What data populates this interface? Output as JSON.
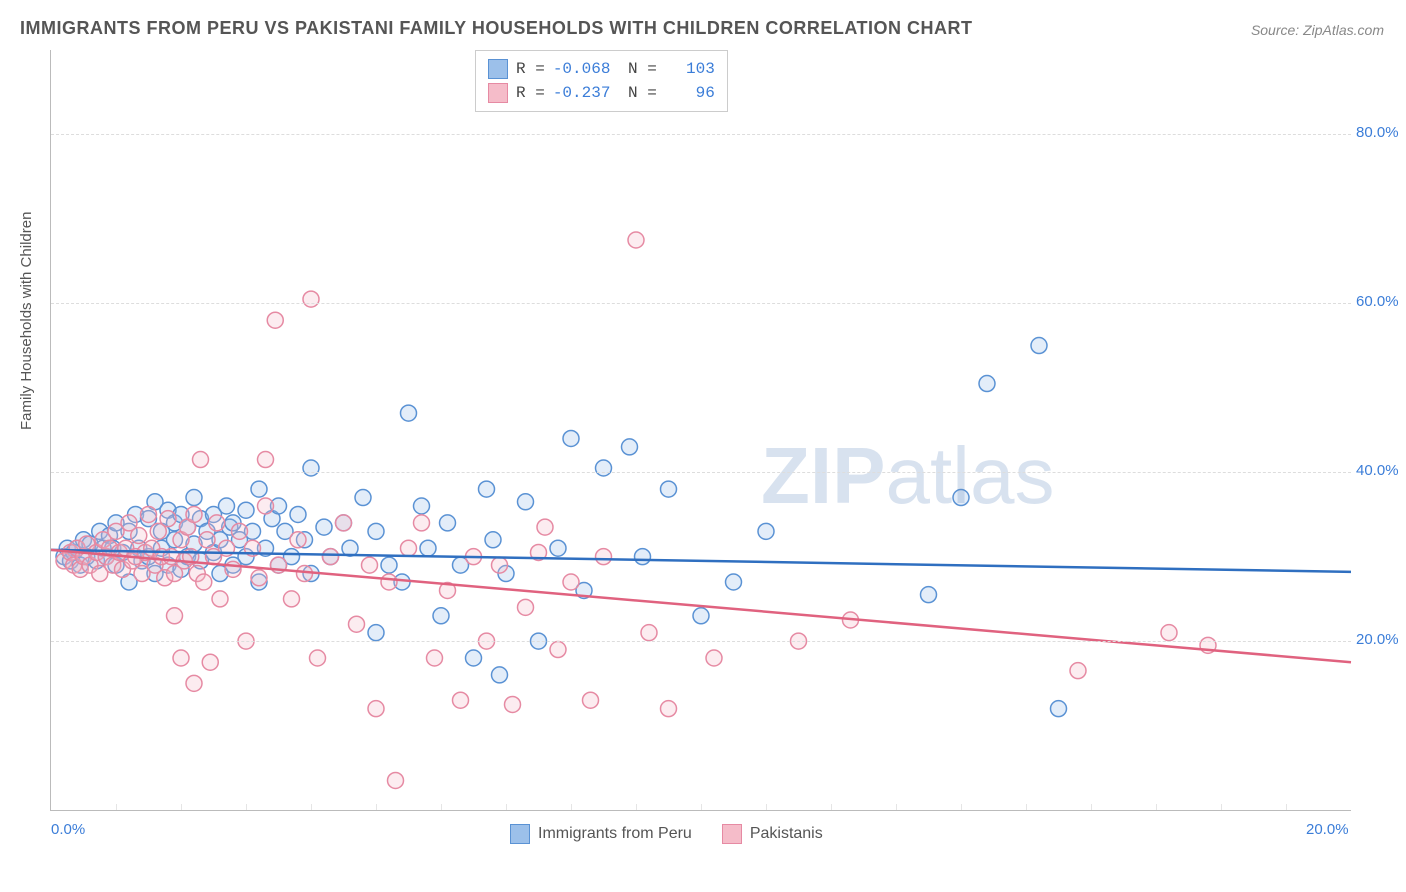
{
  "title": "IMMIGRANTS FROM PERU VS PAKISTANI FAMILY HOUSEHOLDS WITH CHILDREN CORRELATION CHART",
  "source": "Source: ZipAtlas.com",
  "watermark": {
    "bold": "ZIP",
    "rest": "atlas"
  },
  "chart": {
    "type": "scatter",
    "xlim": [
      0,
      20
    ],
    "ylim": [
      0,
      90
    ],
    "xlabel": "",
    "ylabel": "Family Households with Children",
    "xticks": [
      0,
      20
    ],
    "xtick_labels": [
      "0.0%",
      "20.0%"
    ],
    "xtick_color": "#3b7dd8",
    "yticks": [
      20,
      40,
      60,
      80
    ],
    "ytick_labels": [
      "20.0%",
      "40.0%",
      "60.0%",
      "80.0%"
    ],
    "ytick_color": "#3b7dd8",
    "grid_color": "#dddddd",
    "background": "#ffffff",
    "marker_radius": 8,
    "marker_stroke_width": 1.5,
    "marker_fill_opacity": 0.28,
    "line_width": 2.5,
    "series": [
      {
        "name": "Immigrants from Peru",
        "color_fill": "#9cc0ea",
        "color_stroke": "#5a92d4",
        "line_color": "#2f6fc0",
        "R": "-0.068",
        "N": "103",
        "trend": {
          "x1": 0,
          "y1": 30.8,
          "x2": 20,
          "y2": 28.2
        },
        "points": [
          [
            0.2,
            30
          ],
          [
            0.25,
            31
          ],
          [
            0.3,
            29.5
          ],
          [
            0.35,
            30.5
          ],
          [
            0.4,
            31
          ],
          [
            0.45,
            29
          ],
          [
            0.5,
            32
          ],
          [
            0.55,
            30
          ],
          [
            0.6,
            31.5
          ],
          [
            0.7,
            29.5
          ],
          [
            0.75,
            33
          ],
          [
            0.8,
            31
          ],
          [
            0.85,
            30
          ],
          [
            0.9,
            32.5
          ],
          [
            0.95,
            31
          ],
          [
            1.0,
            34
          ],
          [
            1.0,
            29
          ],
          [
            1.1,
            30.5
          ],
          [
            1.2,
            33
          ],
          [
            1.2,
            27
          ],
          [
            1.3,
            35
          ],
          [
            1.35,
            31
          ],
          [
            1.4,
            29.5
          ],
          [
            1.5,
            34.5
          ],
          [
            1.5,
            30
          ],
          [
            1.6,
            36.5
          ],
          [
            1.6,
            28
          ],
          [
            1.7,
            33
          ],
          [
            1.7,
            31
          ],
          [
            1.8,
            35.5
          ],
          [
            1.8,
            29
          ],
          [
            1.9,
            34
          ],
          [
            1.9,
            32
          ],
          [
            2.0,
            28.5
          ],
          [
            2.0,
            35
          ],
          [
            2.1,
            33.5
          ],
          [
            2.1,
            30
          ],
          [
            2.2,
            31.5
          ],
          [
            2.2,
            37
          ],
          [
            2.3,
            29.5
          ],
          [
            2.3,
            34.5
          ],
          [
            2.4,
            33
          ],
          [
            2.5,
            30.5
          ],
          [
            2.5,
            35
          ],
          [
            2.6,
            32
          ],
          [
            2.6,
            28
          ],
          [
            2.7,
            36
          ],
          [
            2.75,
            33.5
          ],
          [
            2.8,
            29
          ],
          [
            2.8,
            34
          ],
          [
            2.9,
            32
          ],
          [
            3.0,
            35.5
          ],
          [
            3.0,
            30
          ],
          [
            3.1,
            33
          ],
          [
            3.2,
            27
          ],
          [
            3.2,
            38
          ],
          [
            3.3,
            31
          ],
          [
            3.4,
            34.5
          ],
          [
            3.5,
            29
          ],
          [
            3.5,
            36
          ],
          [
            3.6,
            33
          ],
          [
            3.7,
            30
          ],
          [
            3.8,
            35
          ],
          [
            3.9,
            32
          ],
          [
            4.0,
            28
          ],
          [
            4.0,
            40.5
          ],
          [
            4.2,
            33.5
          ],
          [
            4.3,
            30
          ],
          [
            4.5,
            34
          ],
          [
            4.6,
            31
          ],
          [
            4.8,
            37
          ],
          [
            5.0,
            21
          ],
          [
            5.0,
            33
          ],
          [
            5.2,
            29
          ],
          [
            5.4,
            27
          ],
          [
            5.5,
            47
          ],
          [
            5.7,
            36
          ],
          [
            5.8,
            31
          ],
          [
            6.0,
            23
          ],
          [
            6.1,
            34
          ],
          [
            6.3,
            29
          ],
          [
            6.5,
            18
          ],
          [
            6.7,
            38
          ],
          [
            6.8,
            32
          ],
          [
            6.9,
            16
          ],
          [
            7.0,
            28
          ],
          [
            7.3,
            36.5
          ],
          [
            7.5,
            20
          ],
          [
            7.8,
            31
          ],
          [
            8.0,
            44
          ],
          [
            8.2,
            26
          ],
          [
            8.5,
            40.5
          ],
          [
            8.9,
            43
          ],
          [
            9.1,
            30
          ],
          [
            9.5,
            38
          ],
          [
            10.0,
            23
          ],
          [
            10.5,
            27
          ],
          [
            11.0,
            33
          ],
          [
            13.5,
            25.5
          ],
          [
            14.0,
            37
          ],
          [
            14.4,
            50.5
          ],
          [
            15.2,
            55
          ],
          [
            15.5,
            12
          ]
        ]
      },
      {
        "name": "Pakistanis",
        "color_fill": "#f5bcc9",
        "color_stroke": "#e68aa3",
        "line_color": "#e0627f",
        "R": "-0.237",
        "N": "96",
        "trend": {
          "x1": 0,
          "y1": 30.8,
          "x2": 20,
          "y2": 17.5
        },
        "points": [
          [
            0.2,
            29.5
          ],
          [
            0.3,
            30.5
          ],
          [
            0.35,
            29
          ],
          [
            0.4,
            31
          ],
          [
            0.45,
            28.5
          ],
          [
            0.5,
            30
          ],
          [
            0.55,
            31.5
          ],
          [
            0.6,
            29
          ],
          [
            0.7,
            30.5
          ],
          [
            0.75,
            28
          ],
          [
            0.8,
            32
          ],
          [
            0.85,
            30
          ],
          [
            0.9,
            31
          ],
          [
            0.95,
            29
          ],
          [
            1.0,
            33
          ],
          [
            1.05,
            30.5
          ],
          [
            1.1,
            28.5
          ],
          [
            1.15,
            31
          ],
          [
            1.2,
            34
          ],
          [
            1.25,
            29.5
          ],
          [
            1.3,
            30
          ],
          [
            1.35,
            32.5
          ],
          [
            1.4,
            28
          ],
          [
            1.45,
            30.5
          ],
          [
            1.5,
            35
          ],
          [
            1.55,
            31
          ],
          [
            1.6,
            29
          ],
          [
            1.65,
            33
          ],
          [
            1.7,
            30
          ],
          [
            1.75,
            27.5
          ],
          [
            1.8,
            34.5
          ],
          [
            1.85,
            30
          ],
          [
            1.9,
            23
          ],
          [
            1.9,
            28
          ],
          [
            2.0,
            32
          ],
          [
            2.0,
            18
          ],
          [
            2.05,
            29.5
          ],
          [
            2.1,
            33.5
          ],
          [
            2.15,
            30
          ],
          [
            2.2,
            15
          ],
          [
            2.2,
            35
          ],
          [
            2.25,
            28
          ],
          [
            2.3,
            41.5
          ],
          [
            2.35,
            27
          ],
          [
            2.4,
            32
          ],
          [
            2.45,
            17.5
          ],
          [
            2.5,
            30
          ],
          [
            2.55,
            34
          ],
          [
            2.6,
            25
          ],
          [
            2.7,
            31
          ],
          [
            2.8,
            28.5
          ],
          [
            2.9,
            33
          ],
          [
            3.0,
            20
          ],
          [
            3.1,
            31
          ],
          [
            3.2,
            27.5
          ],
          [
            3.3,
            36
          ],
          [
            3.3,
            41.5
          ],
          [
            3.45,
            58
          ],
          [
            3.5,
            29
          ],
          [
            3.7,
            25
          ],
          [
            3.8,
            32
          ],
          [
            3.9,
            28
          ],
          [
            4.0,
            60.5
          ],
          [
            4.1,
            18
          ],
          [
            4.3,
            30
          ],
          [
            4.5,
            34
          ],
          [
            4.7,
            22
          ],
          [
            4.9,
            29
          ],
          [
            5.0,
            12
          ],
          [
            5.2,
            27
          ],
          [
            5.3,
            3.5
          ],
          [
            5.5,
            31
          ],
          [
            5.7,
            34
          ],
          [
            5.9,
            18
          ],
          [
            6.1,
            26
          ],
          [
            6.3,
            13
          ],
          [
            6.5,
            30
          ],
          [
            6.7,
            20
          ],
          [
            6.9,
            29
          ],
          [
            7.1,
            12.5
          ],
          [
            7.3,
            24
          ],
          [
            7.5,
            30.5
          ],
          [
            7.6,
            33.5
          ],
          [
            7.8,
            19
          ],
          [
            8.0,
            27
          ],
          [
            8.3,
            13
          ],
          [
            8.5,
            30
          ],
          [
            9.0,
            67.5
          ],
          [
            9.2,
            21
          ],
          [
            9.5,
            12
          ],
          [
            10.2,
            18
          ],
          [
            11.5,
            20
          ],
          [
            12.3,
            22.5
          ],
          [
            15.8,
            16.5
          ],
          [
            17.2,
            21
          ],
          [
            17.8,
            19.5
          ]
        ]
      }
    ]
  },
  "legend_bottom": [
    {
      "label": "Immigrants from Peru",
      "fill": "#9cc0ea",
      "stroke": "#5a92d4"
    },
    {
      "label": "Pakistanis",
      "fill": "#f5bcc9",
      "stroke": "#e68aa3"
    }
  ]
}
